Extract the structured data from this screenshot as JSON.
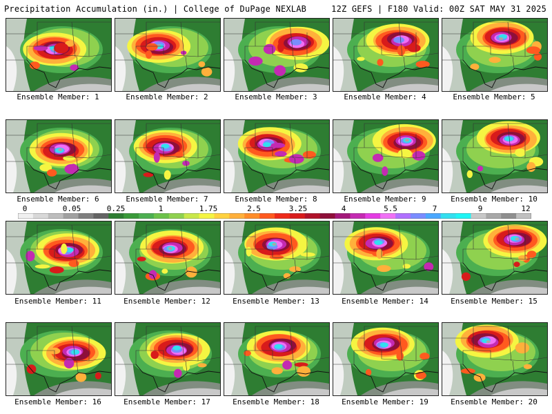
{
  "header": {
    "left_title": "Precipitation Accumulation (in.) | College of DuPage NEXLAB",
    "right_title": "12Z GEFS | F180 Valid: 00Z SAT MAY 31 2025"
  },
  "members": [
    {
      "label": "Ensemble Member: 1",
      "max_level": 10
    },
    {
      "label": "Ensemble Member: 2",
      "max_level": 10
    },
    {
      "label": "Ensemble Member: 3",
      "max_level": 8
    },
    {
      "label": "Ensemble Member: 4",
      "max_level": 8
    },
    {
      "label": "Ensemble Member: 5",
      "max_level": 10
    },
    {
      "label": "Ensemble Member: 6",
      "max_level": 10
    },
    {
      "label": "Ensemble Member: 7",
      "max_level": 9
    },
    {
      "label": "Ensemble Member: 8",
      "max_level": 9
    },
    {
      "label": "Ensemble Member: 9",
      "max_level": 10
    },
    {
      "label": "Ensemble Member: 10",
      "max_level": 9
    },
    {
      "label": "Ensemble Member: 11",
      "max_level": 10
    },
    {
      "label": "Ensemble Member: 12",
      "max_level": 10
    },
    {
      "label": "Ensemble Member: 13",
      "max_level": 10
    },
    {
      "label": "Ensemble Member: 14",
      "max_level": 9
    },
    {
      "label": "Ensemble Member: 15",
      "max_level": 10
    },
    {
      "label": "Ensemble Member: 16",
      "max_level": 9
    },
    {
      "label": "Ensemble Member: 17",
      "max_level": 9
    },
    {
      "label": "Ensemble Member: 18",
      "max_level": 9
    },
    {
      "label": "Ensemble Member: 19",
      "max_level": 9
    },
    {
      "label": "Ensemble Member: 20",
      "max_level": 10
    }
  ],
  "colorbar": {
    "labels": [
      "0",
      "0.05",
      "0.25",
      "1",
      "1.75",
      "2.5",
      "3.25",
      "4",
      "5.5",
      "7",
      "9",
      "12"
    ],
    "colors": [
      "#f0f0f0",
      "#d8d8d8",
      "#bdbdbd",
      "#a0a0a0",
      "#7f7f7f",
      "#646464",
      "#2e7d32",
      "#3a9a3a",
      "#4caf50",
      "#6cc24a",
      "#8fd14f",
      "#c9e84a",
      "#f5f542",
      "#ffd23f",
      "#ffb03b",
      "#ff8c28",
      "#ff5a1f",
      "#ee2a1a",
      "#d81b1b",
      "#b0122a",
      "#8e0f3a",
      "#a3197a",
      "#c42ab2",
      "#e43ce3",
      "#f070f5",
      "#b070ff",
      "#7a8cff",
      "#4aa8ff",
      "#33dff0",
      "#1ff5f5",
      "#c8c8c8",
      "#a8a8a8",
      "#8f8f8f",
      "#c0c0c0"
    ]
  }
}
